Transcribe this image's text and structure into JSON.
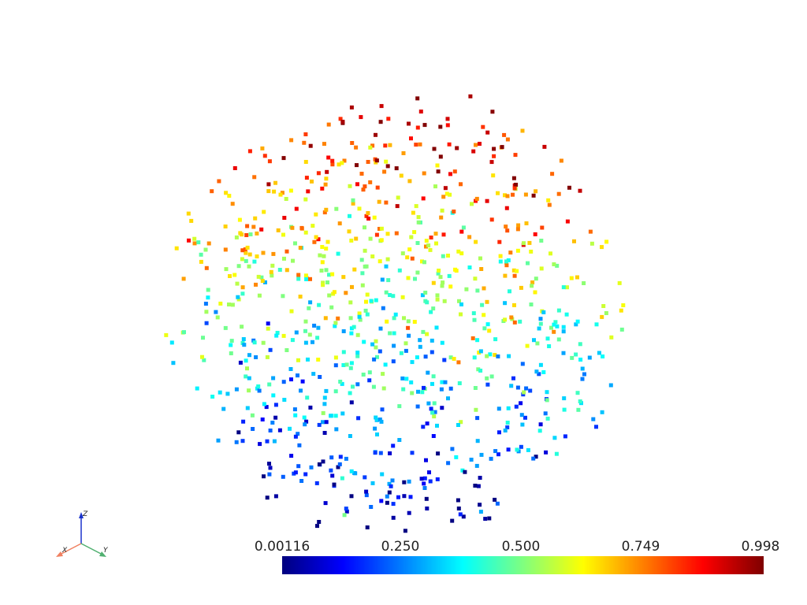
{
  "scalar_bar": {
    "ticks": [
      "0.00116",
      "0.250",
      "0.500",
      "0.749",
      "0.998"
    ],
    "colormap": "jet",
    "min": 0.00116,
    "max": 0.998
  },
  "orientation_axes": {
    "x_label": "X",
    "y_label": "Y",
    "z_label": "Z",
    "x_color": "#f08060",
    "y_color": "#50b070",
    "z_color": "#1a33cc"
  },
  "point_cloud": {
    "point_count": 900,
    "colored_by": "scalar",
    "background": "#ffffff"
  }
}
